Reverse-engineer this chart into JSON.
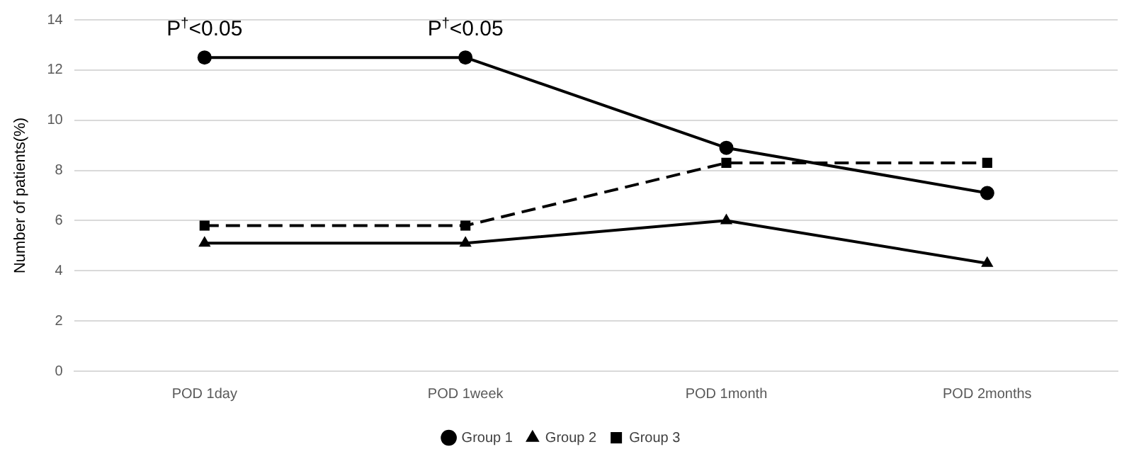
{
  "chart_data": {
    "type": "line",
    "ylabel": "Number of patients(%)",
    "categories": [
      "POD 1day",
      "POD 1week",
      "POD 1month",
      "POD 2months"
    ],
    "series": [
      {
        "name": "Group 1",
        "color": "#000000",
        "values": [
          12.5,
          12.5,
          8.9,
          7.1
        ],
        "marker": "circle",
        "line_style": "solid"
      },
      {
        "name": "Group 2",
        "color": "#000000",
        "values": [
          5.1,
          5.1,
          6.0,
          4.3
        ],
        "marker": "triangle",
        "line_style": "solid"
      },
      {
        "name": "Group 3",
        "color": "#000000",
        "values": [
          5.8,
          5.8,
          8.3,
          8.3
        ],
        "marker": "square",
        "line_style": "dashed"
      }
    ],
    "ylim": [
      0,
      14
    ],
    "yticks": [
      0,
      2,
      4,
      6,
      8,
      10,
      12,
      14
    ],
    "grid": "y",
    "legend": "bottom",
    "annotations": [
      {
        "text": "P$^{†}$<0.05",
        "x": "POD 1day",
        "y": 12.5
      },
      {
        "text": "P$^{†}$<0.05",
        "x": "POD 1week",
        "y": 12.5
      }
    ]
  }
}
